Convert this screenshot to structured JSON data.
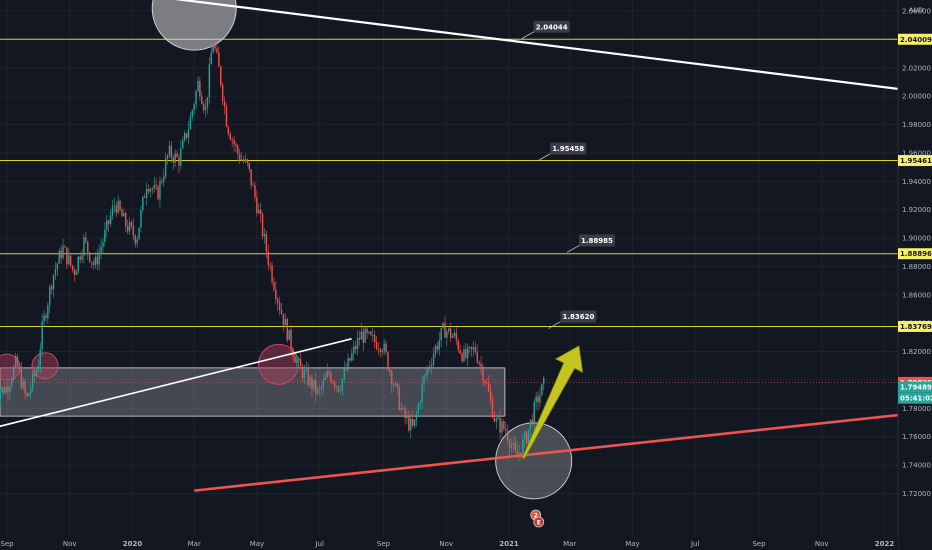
{
  "chart_data": {
    "type": "candlestick",
    "currency": "AUD",
    "ylim": [
      1.715,
      2.085
    ],
    "y_ticks": [
      "2.06000",
      "2.04000",
      "2.02000",
      "2.00000",
      "1.98000",
      "1.96000",
      "1.94000",
      "1.92000",
      "1.90000",
      "1.88000",
      "1.86000",
      "1.84000",
      "1.82000",
      "1.80000",
      "1.78000",
      "1.76000",
      "1.74000",
      "1.72000"
    ],
    "x_ticks": [
      "Sep",
      "Nov",
      "2020",
      "Mar",
      "May",
      "Jul",
      "Sep",
      "Nov",
      "2021",
      "Mar",
      "May",
      "Jul",
      "Sep",
      "Nov",
      "2022"
    ],
    "price_levels": [
      {
        "value": 2.04009,
        "label": "2.04009"
      },
      {
        "value": 1.95461,
        "label": "1.95461"
      },
      {
        "value": 1.88896,
        "label": "1.88896"
      },
      {
        "value": 1.83769,
        "label": "1.83769"
      }
    ],
    "annotations": [
      {
        "value": 2.04044,
        "label": "2.04044"
      },
      {
        "value": 1.95458,
        "label": "1.95458"
      },
      {
        "value": 1.88985,
        "label": "1.88985"
      },
      {
        "value": 1.8362,
        "label": "1.83620"
      }
    ],
    "current_price": {
      "value": 1.79826,
      "label": "1.79826"
    },
    "bid_price": {
      "value": 1.79489,
      "label": "1.79489"
    },
    "countdown": "05:41:02",
    "support_zone": [
      1.7745,
      1.8085
    ],
    "trend_lines": [
      {
        "name": "descending-resistance",
        "color": "#ffffff",
        "from": [
          "2019-08",
          2.086
        ],
        "to": [
          "2022-02",
          2.0035
        ]
      },
      {
        "name": "ascending-support",
        "color": "#ef5350",
        "from": [
          "2020-03",
          1.722
        ],
        "to": [
          "2022-02",
          1.7766
        ]
      },
      {
        "name": "inner-trendline",
        "color": "#ffffff",
        "from": [
          "2019-08",
          1.763
        ],
        "to": [
          "2020-08",
          1.829
        ]
      }
    ],
    "projection_arrow": {
      "color": "#c5c520",
      "from": [
        "2021-01",
        1.745
      ],
      "to": [
        "2021-03",
        1.824
      ]
    },
    "event_badges": [
      "2",
      "E"
    ],
    "price_path": [
      [
        "2019-08-20",
        1.79
      ],
      [
        "2019-09-01",
        1.795
      ],
      [
        "2019-09-10",
        1.812
      ],
      [
        "2019-09-20",
        1.786
      ],
      [
        "2019-10-01",
        1.81
      ],
      [
        "2019-10-05",
        1.835
      ],
      [
        "2019-10-15",
        1.872
      ],
      [
        "2019-10-25",
        1.893
      ],
      [
        "2019-11-05",
        1.876
      ],
      [
        "2019-11-15",
        1.898
      ],
      [
        "2019-11-25",
        1.88
      ],
      [
        "2019-12-05",
        1.902
      ],
      [
        "2019-12-15",
        1.925
      ],
      [
        "2019-12-25",
        1.91
      ],
      [
        "2020-01-05",
        1.9
      ],
      [
        "2020-01-15",
        1.94
      ],
      [
        "2020-01-25",
        1.93
      ],
      [
        "2020-02-05",
        1.96
      ],
      [
        "2020-02-15",
        1.955
      ],
      [
        "2020-02-25",
        1.98
      ],
      [
        "2020-03-05",
        2.01
      ],
      [
        "2020-03-12",
        1.99
      ],
      [
        "2020-03-19",
        2.04
      ],
      [
        "2020-03-26",
        2.015
      ],
      [
        "2020-04-02",
        1.98
      ],
      [
        "2020-04-12",
        1.96
      ],
      [
        "2020-04-22",
        1.95
      ],
      [
        "2020-05-02",
        1.92
      ],
      [
        "2020-05-12",
        1.885
      ],
      [
        "2020-05-22",
        1.855
      ],
      [
        "2020-06-01",
        1.83
      ],
      [
        "2020-06-10",
        1.81
      ],
      [
        "2020-06-20",
        1.8
      ],
      [
        "2020-06-30",
        1.79
      ],
      [
        "2020-07-10",
        1.805
      ],
      [
        "2020-07-20",
        1.795
      ],
      [
        "2020-07-31",
        1.815
      ],
      [
        "2020-08-10",
        1.832
      ],
      [
        "2020-08-20",
        1.828
      ],
      [
        "2020-08-31",
        1.825
      ],
      [
        "2020-09-10",
        1.8
      ],
      [
        "2020-09-20",
        1.775
      ],
      [
        "2020-09-30",
        1.765
      ],
      [
        "2020-10-10",
        1.8
      ],
      [
        "2020-10-20",
        1.82
      ],
      [
        "2020-10-30",
        1.836
      ],
      [
        "2020-11-09",
        1.83
      ],
      [
        "2020-11-19",
        1.815
      ],
      [
        "2020-11-29",
        1.822
      ],
      [
        "2020-12-09",
        1.8
      ],
      [
        "2020-12-19",
        1.77
      ],
      [
        "2020-12-29",
        1.765
      ],
      [
        "2021-01-08",
        1.745
      ],
      [
        "2021-01-18",
        1.76
      ],
      [
        "2021-01-28",
        1.785
      ],
      [
        "2021-02-05",
        1.798
      ]
    ]
  }
}
